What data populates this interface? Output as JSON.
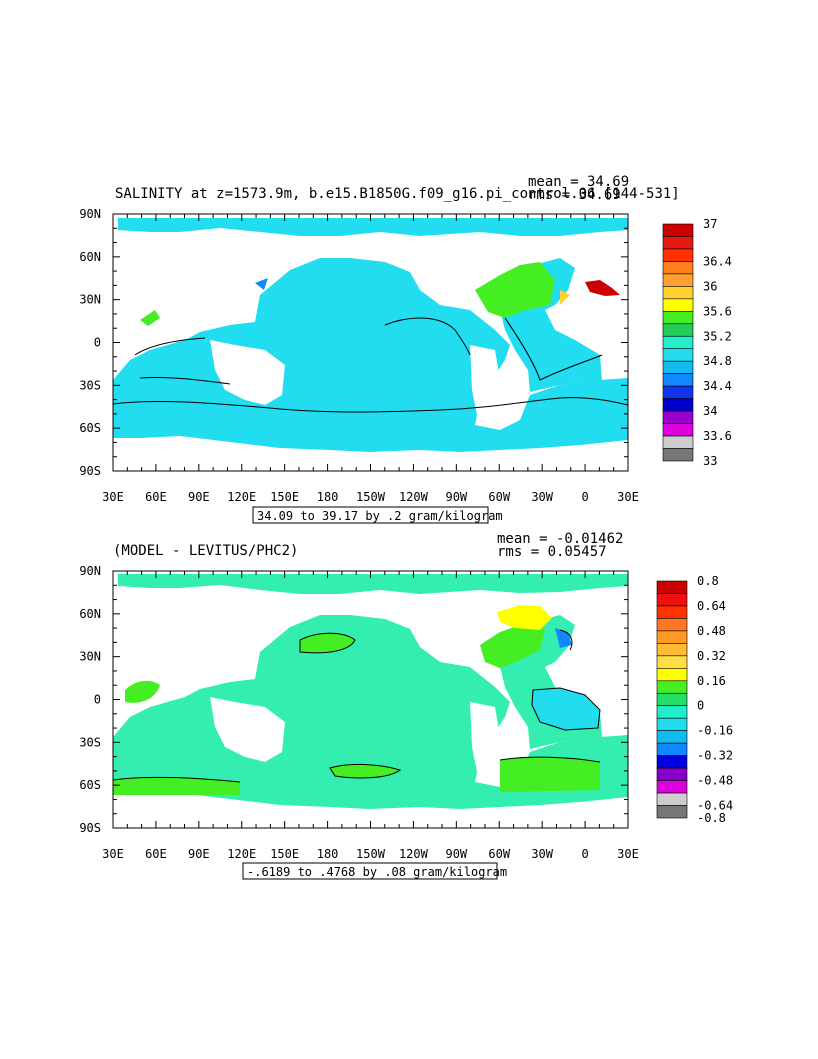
{
  "panels": [
    {
      "title": "SALINITY at z=1573.9m, b.e15.B1850G.f09_g16.pi_control.06 [144-531]",
      "stats_mean": "mean = 34.69",
      "stats_rms": "rms = 34.69",
      "range_note": "34.09 to 39.17 by .2 gram/kilogram",
      "ocean_color": "#22dcef",
      "legend": {
        "colors": [
          "#cc0000",
          "#e8170f",
          "#ff3300",
          "#ff7f1e",
          "#ff9f30",
          "#ffd030",
          "#ffff00",
          "#44ee22",
          "#22cc55",
          "#22eecc",
          "#22dcef",
          "#11bbee",
          "#1188ff",
          "#1133ee",
          "#0000cc",
          "#9900cc",
          "#dd00dd",
          "#cccccc",
          "#777777"
        ],
        "labels": [
          "37",
          "36.4",
          "36",
          "35.6",
          "35.2",
          "34.8",
          "34.4",
          "34",
          "33.6",
          "33"
        ],
        "label_rows": [
          0,
          3,
          5,
          7,
          9,
          11,
          13,
          15,
          17,
          19
        ]
      }
    },
    {
      "title": "(MODEL - LEVITUS/PHC2)",
      "stats_mean": "mean = -0.01462",
      "stats_rms": "rms = 0.05457",
      "range_note": "-.6189 to .4768 by .08 gram/kilogram",
      "ocean_color": "#33eeb0",
      "legend": {
        "colors": [
          "#cc0000",
          "#ee1111",
          "#ff3300",
          "#ff7722",
          "#ff9922",
          "#ffbb33",
          "#ffdd44",
          "#ffff00",
          "#44ee22",
          "#22dd66",
          "#22eecc",
          "#22ddee",
          "#11bbee",
          "#1188ff",
          "#0000dd",
          "#8800cc",
          "#dd00dd",
          "#cccccc",
          "#777777"
        ],
        "labels": [
          "0.8",
          "0.64",
          "0.48",
          "0.32",
          "0.16",
          "0",
          "-0.16",
          "-0.32",
          "-0.48",
          "-0.64",
          "-0.8"
        ],
        "label_rows": [
          0,
          2,
          4,
          6,
          8,
          10,
          12,
          14,
          16,
          18,
          19
        ]
      }
    }
  ],
  "chart_data": {
    "type": "heatmap",
    "x_tick_labels": [
      "30E",
      "60E",
      "90E",
      "120E",
      "150E",
      "180",
      "150W",
      "120W",
      "90W",
      "60W",
      "30W",
      "0",
      "30E"
    ],
    "y_tick_labels": [
      "90N",
      "60N",
      "30N",
      "0",
      "30S",
      "60S",
      "90S"
    ]
  }
}
